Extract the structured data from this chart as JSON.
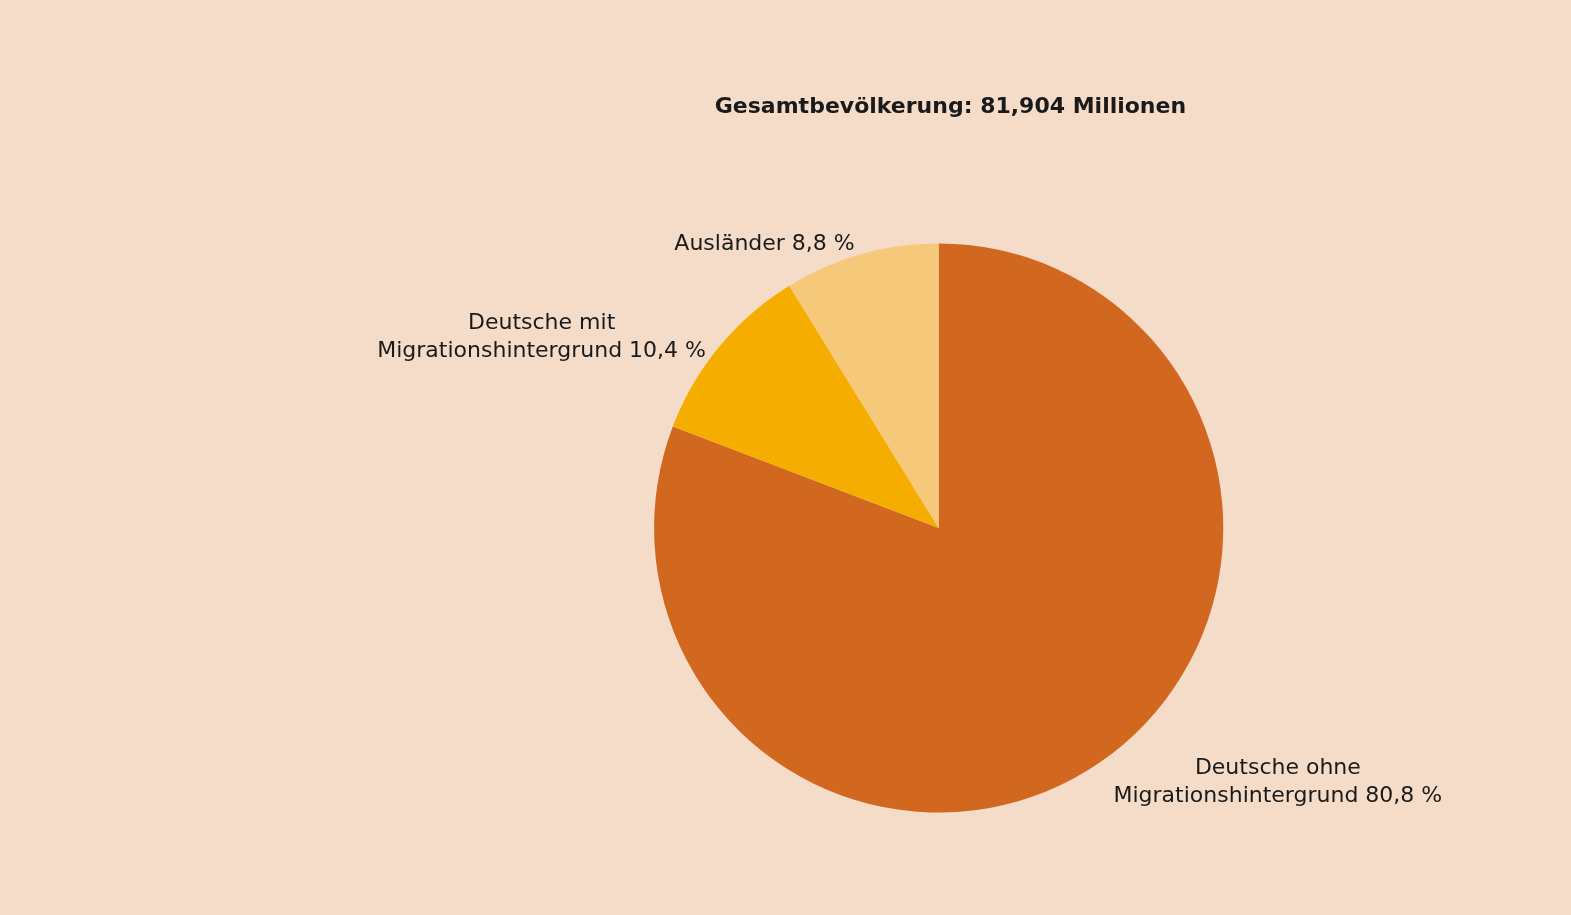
{
  "chart_data": {
    "type": "pie",
    "title": "Gesamtbevölkerung: 81,904 Millionen",
    "categories": [
      "Deutsche ohne Migrationshintergrund",
      "Deutsche mit Migrationshintergrund",
      "Ausländer"
    ],
    "values": [
      80.8,
      10.4,
      8.8
    ],
    "value_labels": [
      "80,8 %",
      "10,4 %",
      "8,8 %"
    ],
    "colors": [
      "#d2671f",
      "#f5ae00",
      "#f6c97a"
    ],
    "legend": false
  }
}
